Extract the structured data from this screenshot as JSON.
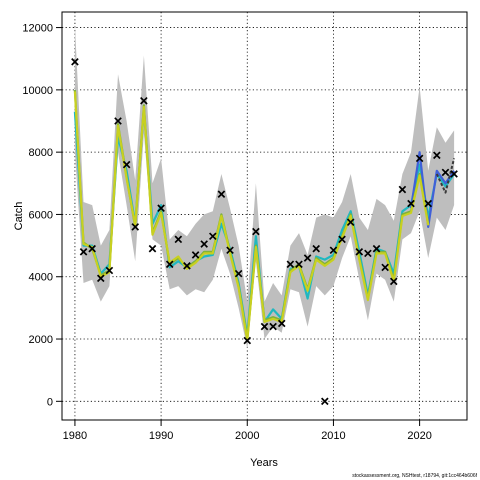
{
  "chart_data": {
    "type": "line",
    "xlabel": "Years",
    "ylabel": "Catch",
    "xlim": [
      1978.5,
      2025.5
    ],
    "ylim": [
      -600,
      12500
    ],
    "x_ticks": [
      1980,
      1990,
      2000,
      2010,
      2020
    ],
    "y_ticks": [
      0,
      2000,
      4000,
      6000,
      8000,
      10000,
      12000
    ],
    "grid": true,
    "grid_style": "dotted",
    "credit": "stockassessment.org, NSHtest, r18794, git:1cc464b606f",
    "band": {
      "color": "#bebebe",
      "years": [
        1980,
        1981,
        1982,
        1983,
        1984,
        1985,
        1986,
        1987,
        1988,
        1989,
        1990,
        1991,
        1992,
        1993,
        1994,
        1995,
        1996,
        1997,
        1998,
        1999,
        2000,
        2001,
        2002,
        2003,
        2004,
        2005,
        2006,
        2007,
        2008,
        2009,
        2010,
        2011,
        2012,
        2013,
        2014,
        2015,
        2016,
        2017,
        2018,
        2019,
        2020,
        2021,
        2022,
        2023,
        2024
      ],
      "upper": [
        12100,
        6400,
        6300,
        5000,
        5500,
        10500,
        9000,
        7100,
        11100,
        7000,
        7800,
        5200,
        5500,
        5300,
        5700,
        6000,
        6100,
        7300,
        6200,
        5000,
        3200,
        7000,
        3200,
        3800,
        3400,
        5000,
        5400,
        4700,
        5900,
        6000,
        5900,
        6400,
        7300,
        5900,
        5500,
        6500,
        6300,
        5800,
        7300,
        8000,
        10100,
        7400,
        8800,
        8300,
        8700
      ],
      "lower": [
        8000,
        3800,
        3900,
        3200,
        3700,
        8000,
        6300,
        4500,
        8600,
        5200,
        5000,
        3600,
        3700,
        3400,
        3600,
        3500,
        3900,
        4900,
        4100,
        3000,
        1700,
        4500,
        2000,
        2400,
        2200,
        3600,
        3500,
        2400,
        3700,
        3400,
        3700,
        4600,
        5300,
        3900,
        2600,
        4100,
        3900,
        3200,
        5200,
        5400,
        6100,
        4600,
        5900,
        5500,
        6300
      ]
    },
    "series": [
      {
        "color": "#20b8c0",
        "values": [
          9300,
          5000,
          5000,
          4100,
          4400,
          8500,
          7400,
          5700,
          9400,
          5700,
          6300,
          4300,
          4500,
          4300,
          4500,
          4650,
          4700,
          5700,
          4900,
          3800,
          2100,
          5300,
          2550,
          2950,
          2650,
          4250,
          4350,
          3300,
          4650,
          4550,
          4700,
          5500,
          6100,
          4800,
          3400,
          4900,
          4800,
          4100,
          6100,
          6300,
          7600,
          5900,
          7300,
          6900,
          7300
        ]
      },
      {
        "color": "#4060d8",
        "values": [
          null,
          null,
          null,
          null,
          null,
          null,
          null,
          null,
          null,
          null,
          null,
          null,
          null,
          null,
          null,
          null,
          null,
          null,
          null,
          null,
          null,
          null,
          null,
          null,
          null,
          null,
          null,
          null,
          null,
          null,
          null,
          null,
          null,
          null,
          null,
          null,
          null,
          null,
          null,
          6200,
          8000,
          5600,
          7400,
          7000,
          7400
        ]
      },
      {
        "color": "#3a3a3a",
        "values": [
          null,
          null,
          null,
          null,
          null,
          null,
          null,
          null,
          null,
          null,
          null,
          null,
          null,
          null,
          null,
          null,
          null,
          null,
          null,
          null,
          null,
          null,
          null,
          null,
          null,
          null,
          null,
          null,
          null,
          null,
          null,
          null,
          null,
          null,
          null,
          null,
          null,
          null,
          null,
          null,
          null,
          null,
          7300,
          6700,
          7800
        ]
      },
      {
        "color": "#7fb23a",
        "values": [
          10000,
          5100,
          4900,
          4050,
          4200,
          8900,
          7200,
          5600,
          9500,
          5400,
          6100,
          4400,
          4600,
          4300,
          4500,
          4800,
          4800,
          6000,
          4800,
          3700,
          2000,
          5000,
          2600,
          2700,
          2600,
          4200,
          4400,
          3600,
          4600,
          4400,
          4600,
          5300,
          6000,
          4600,
          3300,
          4800,
          4800,
          3900,
          6000,
          6100,
          7300,
          5700,
          null,
          null,
          null
        ]
      },
      {
        "color": "#c8d020",
        "values": [
          9950,
          5050,
          4950,
          4000,
          4150,
          8850,
          7150,
          5650,
          9450,
          5350,
          6050,
          4450,
          4650,
          4250,
          4450,
          4750,
          4750,
          5950,
          4750,
          3650,
          1950,
          4950,
          2550,
          2650,
          2550,
          4150,
          4350,
          3550,
          4550,
          4350,
          4550,
          5250,
          5950,
          4550,
          3250,
          4750,
          4750,
          3850,
          5950,
          6050,
          7250,
          5650,
          null,
          null,
          null
        ]
      }
    ],
    "observed": {
      "marker": "x",
      "years": [
        1980,
        1981,
        1982,
        1983,
        1984,
        1985,
        1986,
        1987,
        1988,
        1989,
        1990,
        1991,
        1992,
        1993,
        1994,
        1995,
        1996,
        1997,
        1998,
        1999,
        2000,
        2001,
        2002,
        2003,
        2004,
        2005,
        2006,
        2007,
        2008,
        2009,
        2010,
        2011,
        2012,
        2013,
        2014,
        2015,
        2016,
        2017,
        2018,
        2019,
        2020,
        2021,
        2022,
        2023,
        2024
      ],
      "values": [
        10900,
        4800,
        4900,
        3950,
        4200,
        9000,
        7600,
        5600,
        9650,
        4900,
        6200,
        4400,
        5200,
        4350,
        4700,
        5050,
        5300,
        6650,
        4850,
        4100,
        1950,
        5450,
        2400,
        2400,
        2500,
        4400,
        4400,
        4600,
        4900,
        0,
        4850,
        5200,
        5750,
        4800,
        4750,
        4900,
        4300,
        3850,
        6800,
        6350,
        7800,
        6350,
        7900,
        7350,
        7300
      ]
    }
  }
}
